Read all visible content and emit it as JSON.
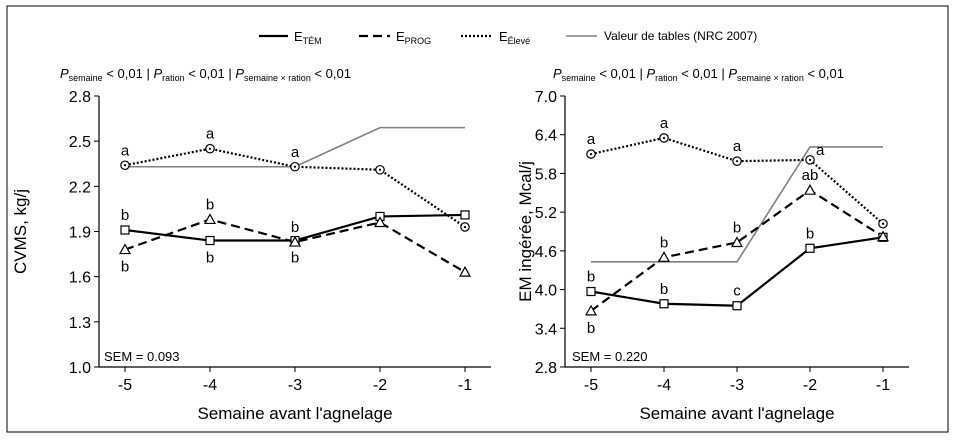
{
  "legend": {
    "items": [
      {
        "base": "E",
        "sub": "TÉM",
        "style": "solid"
      },
      {
        "base": "E",
        "sub": "PROG",
        "style": "dashed"
      },
      {
        "base": "E",
        "sub": "Élevé",
        "style": "dotted"
      },
      {
        "label": "Valeur de tables (NRC 2007)",
        "style": "gray"
      }
    ]
  },
  "stats_line": {
    "p": "P",
    "semaine": "semaine",
    "ration": "ration",
    "interaction": "semaine × ration",
    "value": " < 0,01",
    "sep": "|"
  },
  "chart_data": [
    {
      "type": "line",
      "xlabel": "Semaine avant l'agnelage",
      "ylabel": "CVMS, kg/j",
      "x": [
        -5,
        -4,
        -3,
        -2,
        -1
      ],
      "xticks": [
        "-5",
        "-4",
        "-3",
        "-2",
        "-1"
      ],
      "ylim": [
        1.0,
        2.8
      ],
      "yticks": [
        "1.0",
        "1.3",
        "1.6",
        "1.9",
        "2.2",
        "2.5",
        "2.8"
      ],
      "sem_label": "SEM = 0.093",
      "series": [
        {
          "name": "ETÉM",
          "marker": "square",
          "values": [
            1.91,
            1.84,
            1.84,
            2.0,
            2.01
          ],
          "letters": [
            "b",
            "b",
            "b",
            "",
            ""
          ],
          "letter_pos": [
            "above",
            "below",
            "below",
            "",
            ""
          ]
        },
        {
          "name": "EPROG",
          "marker": "triangle",
          "values": [
            1.78,
            1.98,
            1.83,
            1.96,
            1.63
          ],
          "letters": [
            "b",
            "b",
            "b",
            "",
            ""
          ],
          "letter_pos": [
            "below",
            "above",
            "above",
            "",
            ""
          ]
        },
        {
          "name": "EÉlevé",
          "marker": "circle",
          "values": [
            2.34,
            2.45,
            2.33,
            2.31,
            1.93
          ],
          "letters": [
            "a",
            "a",
            "a",
            "",
            ""
          ],
          "letter_pos": [
            "above",
            "above",
            "above",
            "",
            ""
          ]
        },
        {
          "name": "Valeur de tables (NRC 2007)",
          "marker": "none",
          "steps": [
            [
              -5,
              2.33
            ],
            [
              -3,
              2.33
            ],
            [
              -2,
              2.59
            ],
            [
              -1,
              2.59
            ]
          ]
        }
      ]
    },
    {
      "type": "line",
      "xlabel": "Semaine avant l'agnelage",
      "ylabel": "EM ingérée, Mcal/j",
      "x": [
        -5,
        -4,
        -3,
        -2,
        -1
      ],
      "xticks": [
        "-5",
        "-4",
        "-3",
        "-2",
        "-1"
      ],
      "ylim": [
        2.8,
        7.0
      ],
      "yticks": [
        "2.8",
        "3.4",
        "4.0",
        "4.6",
        "5.2",
        "5.8",
        "6.4",
        "7.0"
      ],
      "sem_label": "SEM = 0.220",
      "series": [
        {
          "name": "ETÉM",
          "marker": "square",
          "values": [
            3.97,
            3.78,
            3.75,
            4.64,
            4.81
          ],
          "letters": [
            "b",
            "b",
            "c",
            "b",
            ""
          ],
          "letter_pos": [
            "above",
            "above",
            "above",
            "above",
            ""
          ]
        },
        {
          "name": "EPROG",
          "marker": "triangle",
          "values": [
            3.67,
            4.5,
            4.73,
            5.54,
            4.82
          ],
          "letters": [
            "b",
            "b",
            "b",
            "ab",
            ""
          ],
          "letter_pos": [
            "below",
            "above",
            "above",
            "above",
            ""
          ]
        },
        {
          "name": "EÉlevé",
          "marker": "circle",
          "values": [
            6.1,
            6.35,
            5.99,
            6.01,
            5.02
          ],
          "letters": [
            "a",
            "a",
            "a",
            "a",
            ""
          ],
          "letter_pos": [
            "above",
            "above",
            "above",
            "right",
            ""
          ]
        },
        {
          "name": "Valeur de tables (NRC 2007)",
          "marker": "none",
          "steps": [
            [
              -5,
              4.43
            ],
            [
              -3,
              4.43
            ],
            [
              -2,
              6.21
            ],
            [
              -1,
              6.21
            ]
          ]
        }
      ]
    }
  ]
}
